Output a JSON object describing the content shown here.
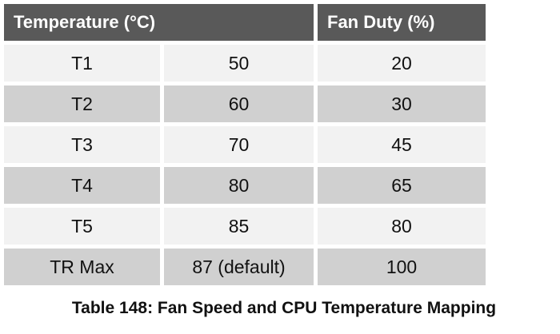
{
  "table": {
    "header": [
      "Temperature (°C)",
      "Fan Duty (%)"
    ],
    "rows": [
      [
        "T1",
        "50",
        "20"
      ],
      [
        "T2",
        "60",
        "30"
      ],
      [
        "T3",
        "70",
        "45"
      ],
      [
        "T4",
        "80",
        "65"
      ],
      [
        "T5",
        "85",
        "80"
      ],
      [
        "TR Max",
        "87 (default)",
        "100"
      ]
    ]
  },
  "caption": "Table 148: Fan Speed and CPU Temperature Mapping"
}
